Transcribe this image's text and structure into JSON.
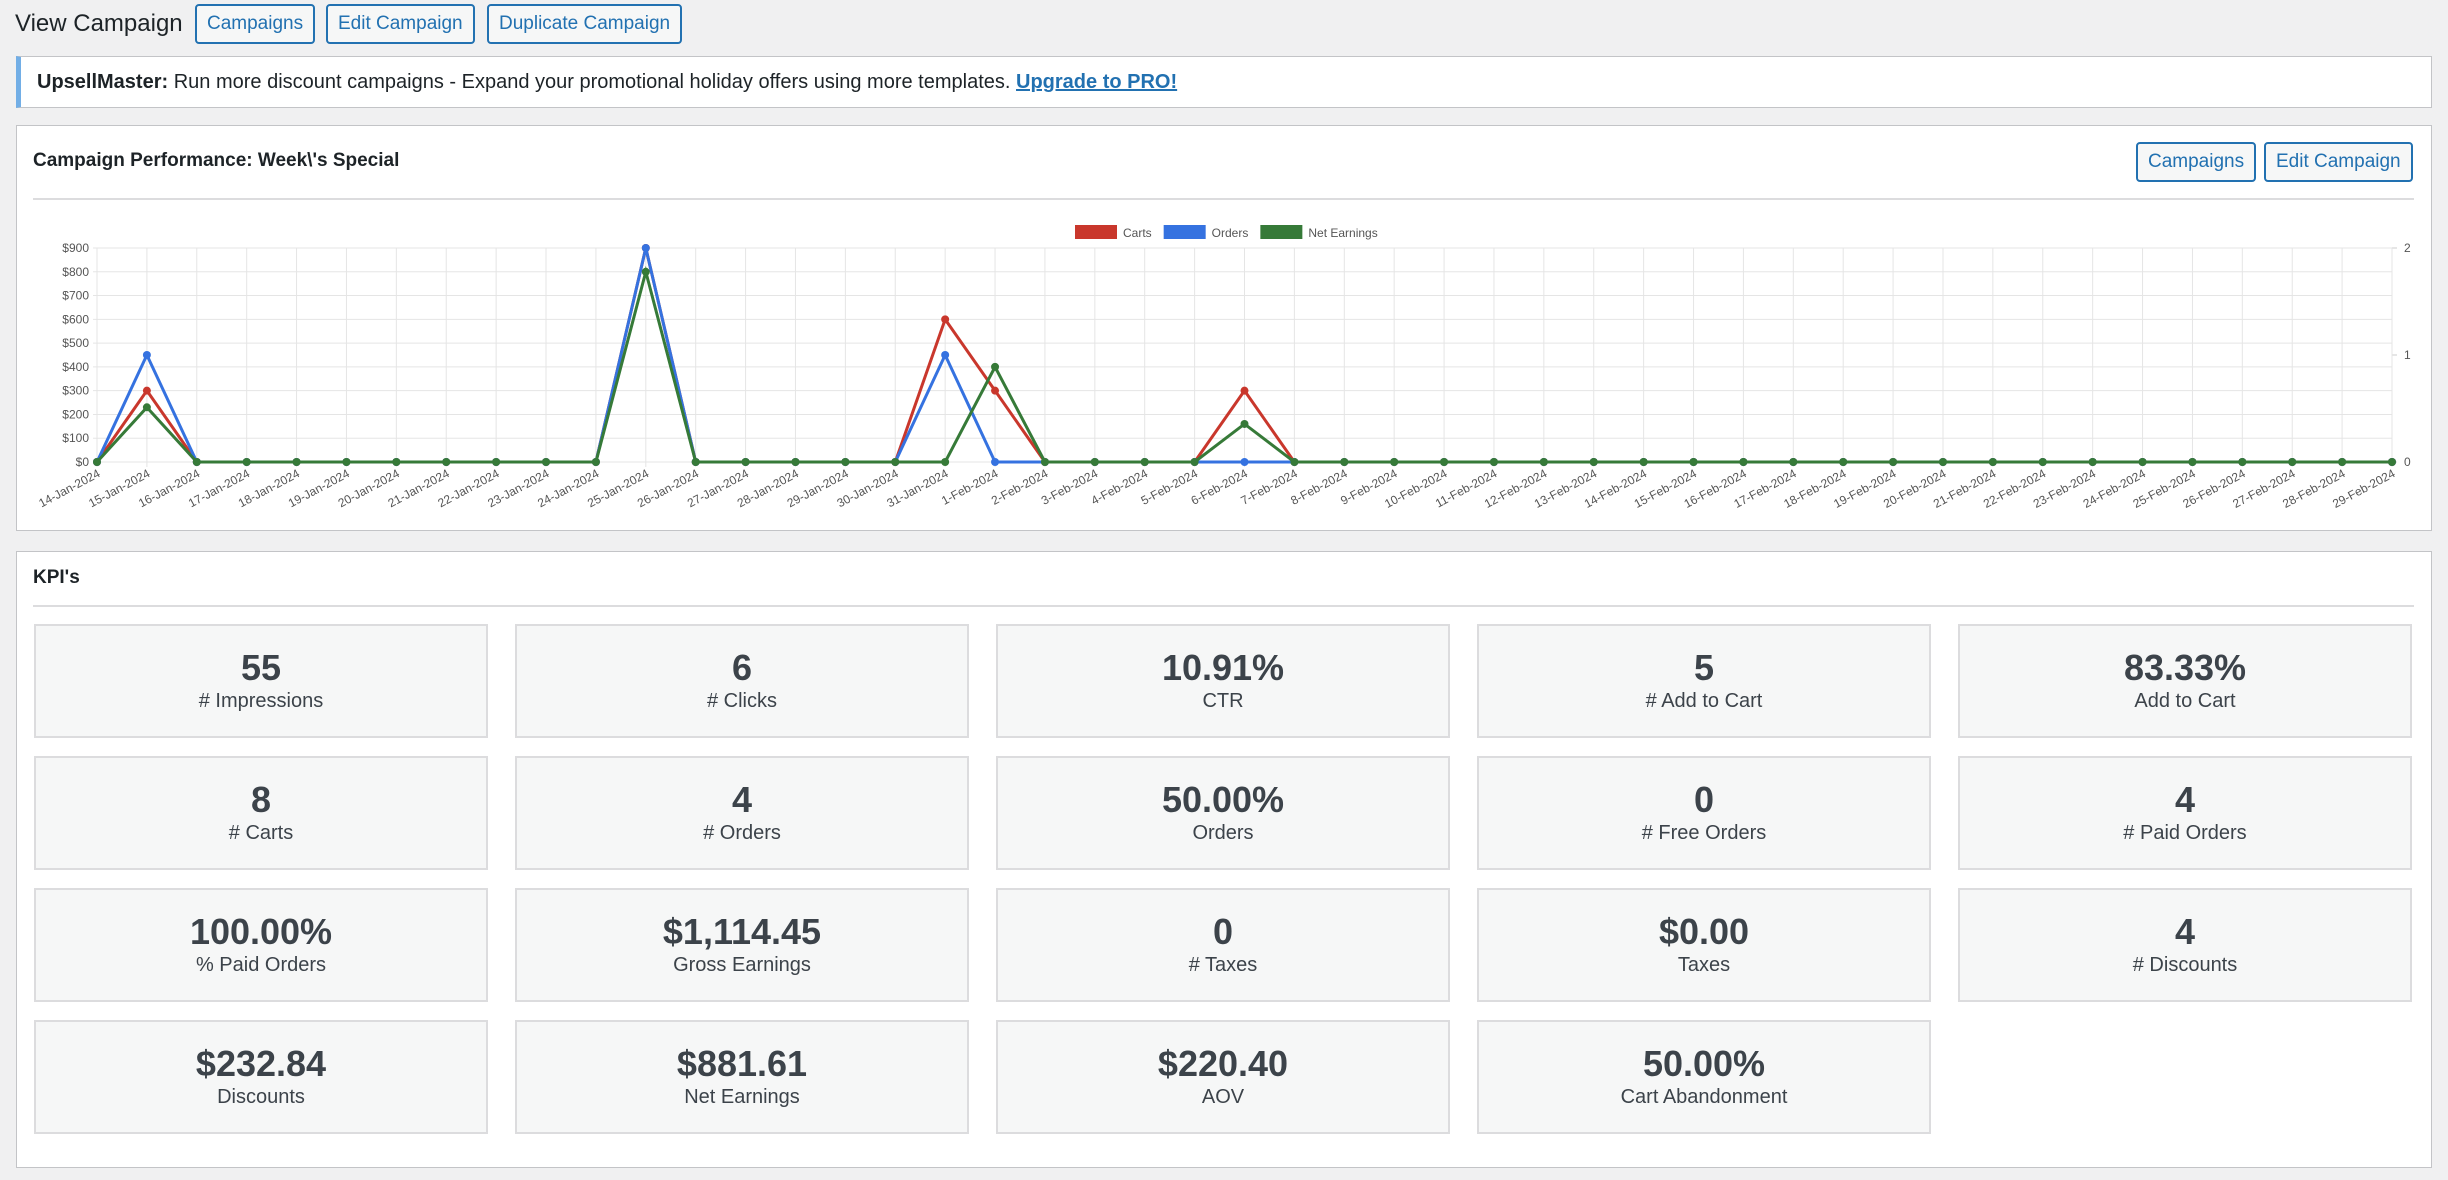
{
  "header": {
    "title": "View Campaign",
    "buttons": [
      "Campaigns",
      "Edit Campaign",
      "Duplicate Campaign"
    ]
  },
  "notice": {
    "brand": "UpsellMaster:",
    "text": "Run more discount campaigns - Expand your promotional holiday offers using more templates.",
    "link": "Upgrade to PRO!"
  },
  "performance": {
    "title": "Campaign Performance: Week\\'s Special",
    "buttons": [
      "Campaigns",
      "Edit Campaign"
    ]
  },
  "chart_data": {
    "type": "line",
    "categories": [
      "14-Jan-2024",
      "15-Jan-2024",
      "16-Jan-2024",
      "17-Jan-2024",
      "18-Jan-2024",
      "19-Jan-2024",
      "20-Jan-2024",
      "21-Jan-2024",
      "22-Jan-2024",
      "23-Jan-2024",
      "24-Jan-2024",
      "25-Jan-2024",
      "26-Jan-2024",
      "27-Jan-2024",
      "28-Jan-2024",
      "29-Jan-2024",
      "30-Jan-2024",
      "31-Jan-2024",
      "1-Feb-2024",
      "2-Feb-2024",
      "3-Feb-2024",
      "4-Feb-2024",
      "5-Feb-2024",
      "6-Feb-2024",
      "7-Feb-2024",
      "8-Feb-2024",
      "9-Feb-2024",
      "10-Feb-2024",
      "11-Feb-2024",
      "12-Feb-2024",
      "13-Feb-2024",
      "14-Feb-2024",
      "15-Feb-2024",
      "16-Feb-2024",
      "17-Feb-2024",
      "18-Feb-2024",
      "19-Feb-2024",
      "20-Feb-2024",
      "21-Feb-2024",
      "22-Feb-2024",
      "23-Feb-2024",
      "24-Feb-2024",
      "25-Feb-2024",
      "26-Feb-2024",
      "27-Feb-2024",
      "28-Feb-2024",
      "29-Feb-2024"
    ],
    "series": [
      {
        "name": "Carts",
        "color": "#c9372c",
        "values": [
          0,
          300,
          0,
          0,
          0,
          0,
          0,
          0,
          0,
          0,
          0,
          900,
          0,
          0,
          0,
          0,
          0,
          600,
          300,
          0,
          0,
          0,
          0,
          300,
          0,
          0,
          0,
          0,
          0,
          0,
          0,
          0,
          0,
          0,
          0,
          0,
          0,
          0,
          0,
          0,
          0,
          0,
          0,
          0,
          0,
          0,
          0
        ]
      },
      {
        "name": "Orders",
        "color": "#3572e0",
        "axis": "y2",
        "values": [
          0,
          1,
          0,
          0,
          0,
          0,
          0,
          0,
          0,
          0,
          0,
          2,
          0,
          0,
          0,
          0,
          0,
          1,
          0,
          0,
          0,
          0,
          0,
          0,
          0,
          0,
          0,
          0,
          0,
          0,
          0,
          0,
          0,
          0,
          0,
          0,
          0,
          0,
          0,
          0,
          0,
          0,
          0,
          0,
          0,
          0,
          0
        ]
      },
      {
        "name": "Net Earnings",
        "color": "#367a38",
        "values": [
          0,
          230,
          0,
          0,
          0,
          0,
          0,
          0,
          0,
          0,
          0,
          800,
          0,
          0,
          0,
          0,
          0,
          0,
          400,
          0,
          0,
          0,
          0,
          160,
          0,
          0,
          0,
          0,
          0,
          0,
          0,
          0,
          0,
          0,
          0,
          0,
          0,
          0,
          0,
          0,
          0,
          0,
          0,
          0,
          0,
          0,
          0
        ]
      }
    ],
    "ylim": [
      0,
      900
    ],
    "yticks": [
      {
        "value": 0,
        "label": "$0"
      },
      {
        "value": 100,
        "label": "$100"
      },
      {
        "value": 200,
        "label": "$200"
      },
      {
        "value": 300,
        "label": "$300"
      },
      {
        "value": 400,
        "label": "$400"
      },
      {
        "value": 500,
        "label": "$500"
      },
      {
        "value": 600,
        "label": "$600"
      },
      {
        "value": 700,
        "label": "$700"
      },
      {
        "value": 800,
        "label": "$800"
      },
      {
        "value": 900,
        "label": "$900"
      }
    ],
    "y2lim": [
      0,
      2
    ],
    "y2ticks": [
      0,
      1,
      2
    ],
    "grid": true,
    "legend": "top"
  },
  "kpis": {
    "title": "KPI's",
    "items": [
      {
        "value": "55",
        "label": "# Impressions"
      },
      {
        "value": "6",
        "label": "# Clicks"
      },
      {
        "value": "10.91%",
        "label": "CTR"
      },
      {
        "value": "5",
        "label": "# Add to Cart"
      },
      {
        "value": "83.33%",
        "label": "Add to Cart"
      },
      {
        "value": "8",
        "label": "# Carts"
      },
      {
        "value": "4",
        "label": "# Orders"
      },
      {
        "value": "50.00%",
        "label": "Orders"
      },
      {
        "value": "0",
        "label": "# Free Orders"
      },
      {
        "value": "4",
        "label": "# Paid Orders"
      },
      {
        "value": "100.00%",
        "label": "% Paid Orders"
      },
      {
        "value": "$1,114.45",
        "label": "Gross Earnings"
      },
      {
        "value": "0",
        "label": "# Taxes"
      },
      {
        "value": "$0.00",
        "label": "Taxes"
      },
      {
        "value": "4",
        "label": "# Discounts"
      },
      {
        "value": "$232.84",
        "label": "Discounts"
      },
      {
        "value": "$881.61",
        "label": "Net Earnings"
      },
      {
        "value": "$220.40",
        "label": "AOV"
      },
      {
        "value": "50.00%",
        "label": "Cart Abandonment"
      }
    ]
  }
}
